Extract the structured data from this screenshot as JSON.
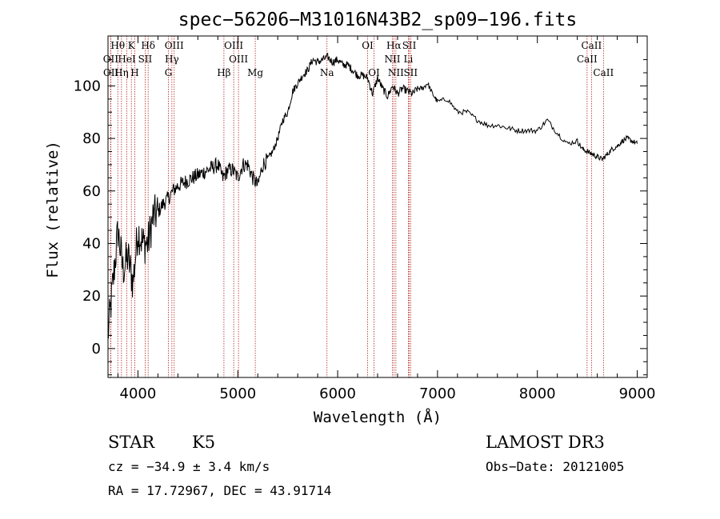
{
  "chart_data": {
    "type": "line",
    "title": "spec−56206−M31016N43B2_sp09−196.fits",
    "xlabel": "Wavelength (Å)",
    "ylabel": "Flux (relative)",
    "xlim": [
      3700,
      9100
    ],
    "ylim": [
      -11,
      119
    ],
    "xticks": [
      4000,
      5000,
      6000,
      7000,
      8000,
      9000
    ],
    "yticks": [
      0,
      20,
      40,
      60,
      80,
      100
    ],
    "grid": false,
    "series": [
      {
        "name": "flux",
        "x": [
          3700,
          3750,
          3800,
          3850,
          3900,
          3950,
          4000,
          4050,
          4100,
          4150,
          4200,
          4250,
          4300,
          4350,
          4400,
          4450,
          4500,
          4550,
          4600,
          4650,
          4700,
          4750,
          4800,
          4850,
          4900,
          4950,
          5000,
          5050,
          5100,
          5150,
          5200,
          5250,
          5300,
          5350,
          5400,
          5450,
          5500,
          5550,
          5600,
          5650,
          5700,
          5750,
          5800,
          5850,
          5900,
          5950,
          6000,
          6050,
          6100,
          6150,
          6200,
          6250,
          6300,
          6350,
          6400,
          6450,
          6500,
          6550,
          6600,
          6650,
          6700,
          6750,
          6800,
          6850,
          6900,
          6950,
          7000,
          7100,
          7200,
          7300,
          7400,
          7500,
          7600,
          7700,
          7800,
          7900,
          8000,
          8100,
          8200,
          8300,
          8400,
          8450,
          8500,
          8550,
          8600,
          8650,
          8700,
          8750,
          8800,
          8850,
          8900,
          8950,
          9000
        ],
        "y": [
          5,
          25,
          45,
          30,
          35,
          25,
          45,
          40,
          40,
          50,
          52,
          55,
          57,
          60,
          62,
          63,
          64,
          65,
          66,
          67,
          68,
          69,
          70,
          65,
          68,
          68,
          65,
          70,
          70,
          65,
          62,
          70,
          72,
          75,
          80,
          87,
          90,
          98,
          101,
          104,
          106,
          110,
          109,
          110,
          111,
          109,
          110,
          108,
          108,
          106,
          104,
          104,
          103,
          97,
          103,
          99,
          96,
          100,
          97,
          99,
          98,
          97,
          99,
          99,
          101,
          97,
          94,
          95,
          90,
          90,
          87,
          85,
          85,
          84,
          83,
          83,
          83,
          87,
          82,
          78,
          79,
          76,
          75,
          74,
          73,
          72,
          74,
          76,
          77,
          79,
          80,
          79,
          78
        ]
      }
    ],
    "spectral_lines": [
      {
        "label": "Hθ",
        "wavelength": 3798,
        "row": 0
      },
      {
        "label": "K",
        "wavelength": 3934,
        "row": 0
      },
      {
        "label": "Hδ",
        "wavelength": 4102,
        "row": 0
      },
      {
        "label": "OIII",
        "wavelength": 4363,
        "row": 0
      },
      {
        "label": "OIII",
        "wavelength": 4959,
        "row": 0
      },
      {
        "label": "OI",
        "wavelength": 6300,
        "row": 0
      },
      {
        "label": "Hα",
        "wavelength": 6563,
        "row": 0
      },
      {
        "label": "SII",
        "wavelength": 6717,
        "row": 0
      },
      {
        "label": "CaII",
        "wavelength": 8542,
        "row": 0
      },
      {
        "label": "OII",
        "wavelength": 3727,
        "row": 1
      },
      {
        "label": "HeI",
        "wavelength": 3889,
        "row": 1
      },
      {
        "label": "SII",
        "wavelength": 4072,
        "row": 1
      },
      {
        "label": "Hγ",
        "wavelength": 4340,
        "row": 1
      },
      {
        "label": "OIII",
        "wavelength": 5007,
        "row": 1
      },
      {
        "label": "NII",
        "wavelength": 6548,
        "row": 1
      },
      {
        "label": "Li",
        "wavelength": 6708,
        "row": 1
      },
      {
        "label": "CaII",
        "wavelength": 8498,
        "row": 1
      },
      {
        "label": "OII",
        "wavelength": 3729,
        "row": 2
      },
      {
        "label": "Hη",
        "wavelength": 3835,
        "row": 2
      },
      {
        "label": "H",
        "wavelength": 3968,
        "row": 2
      },
      {
        "label": "G",
        "wavelength": 4305,
        "row": 2
      },
      {
        "label": "Hβ",
        "wavelength": 4861,
        "row": 2
      },
      {
        "label": "Mg",
        "wavelength": 5175,
        "row": 2
      },
      {
        "label": "Na",
        "wavelength": 5893,
        "row": 2
      },
      {
        "label": "OI",
        "wavelength": 6364,
        "row": 2
      },
      {
        "label": "NII",
        "wavelength": 6583,
        "row": 2
      },
      {
        "label": "SII",
        "wavelength": 6731,
        "row": 2
      },
      {
        "label": "CaII",
        "wavelength": 8662,
        "row": 2
      }
    ]
  },
  "info": {
    "star_class": "STAR",
    "subclass": "K5",
    "survey": "LAMOST DR3",
    "cz": "cz = −34.9 ± 3.4 km/s",
    "obs_date": "Obs−Date: 20121005",
    "coords": "RA =  17.72967, DEC =  43.91714"
  },
  "colors": {
    "spectrum": "#000000",
    "line_marker": "#b22222",
    "axes": "#000000",
    "background": "#ffffff"
  }
}
